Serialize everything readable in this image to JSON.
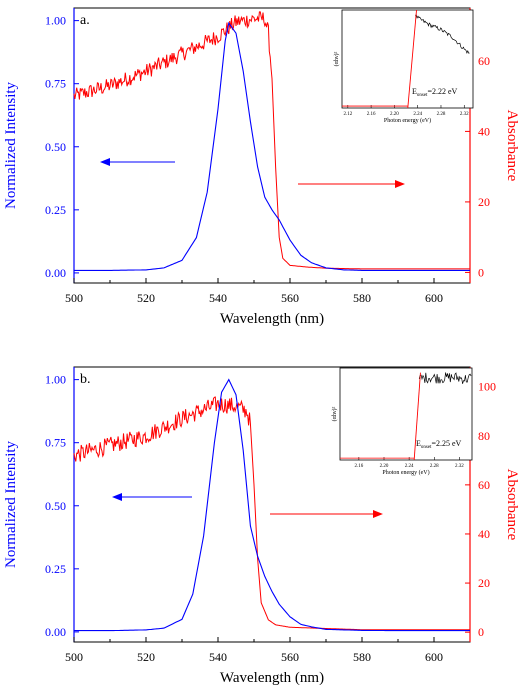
{
  "colors": {
    "emission": "#0000ff",
    "absorbance": "#ff0000",
    "inset_fit": "#ff0000",
    "inset_data": "#000000",
    "axis": "#000000"
  },
  "chart_data": [
    {
      "type": "line",
      "panel_label": "a.",
      "xlabel": "Wavelength (nm)",
      "ylabel_left": "Normalized Intensity",
      "ylabel_right": "Absorbance",
      "xlim": [
        500,
        610
      ],
      "ylim_left": [
        -0.04,
        1.05
      ],
      "ylim_right": [
        -3,
        75
      ],
      "x_ticks": [
        "500",
        "520",
        "540",
        "560",
        "580",
        "600"
      ],
      "y_ticks_left": [
        "0.00",
        "0.25",
        "0.50",
        "0.75",
        "1.00"
      ],
      "y_ticks_right": [
        "0",
        "20",
        "40",
        "60"
      ],
      "arrows": [
        "left",
        "right"
      ],
      "series": [
        {
          "axis": "left",
          "x": [
            500,
            510,
            520,
            525,
            530,
            534,
            537,
            540,
            542,
            543,
            545,
            547,
            549,
            551,
            553,
            555,
            557,
            560,
            563,
            566,
            570,
            575,
            580,
            590,
            600,
            610
          ],
          "values": [
            0.01,
            0.01,
            0.012,
            0.02,
            0.05,
            0.14,
            0.32,
            0.65,
            0.92,
            0.99,
            0.95,
            0.8,
            0.6,
            0.42,
            0.3,
            0.25,
            0.21,
            0.13,
            0.07,
            0.04,
            0.02,
            0.012,
            0.01,
            0.01,
            0.01,
            0.01
          ]
        },
        {
          "axis": "right",
          "x": [
            500,
            510,
            520,
            530,
            540,
            545,
            550,
            553,
            554,
            555,
            556,
            557,
            558,
            560,
            565,
            570,
            580,
            600,
            610
          ],
          "values": [
            50,
            53,
            57,
            62,
            67,
            71,
            72,
            72,
            68,
            55,
            30,
            10,
            4,
            2,
            1.5,
            1.2,
            1,
            1,
            1
          ]
        }
      ],
      "inset": {
        "ylabel": "(αhν)²",
        "xlabel": "Photon energy (eV)",
        "annotation": "E",
        "annotation_sub": "onset",
        "annotation_value": "=2.22 eV",
        "x_ticks": [
          "2.12",
          "2.16",
          "2.20",
          "2.24",
          "2.28",
          "2.32"
        ],
        "xlim": [
          2.11,
          2.335
        ],
        "ylim": [
          0,
          1
        ],
        "fit": {
          "x": [
            2.223,
            2.238
          ],
          "y": [
            0,
            1
          ]
        },
        "data": {
          "x": [
            2.236,
            2.24,
            2.26,
            2.28,
            2.3,
            2.32,
            2.33
          ],
          "y": [
            0.95,
            0.92,
            0.85,
            0.8,
            0.72,
            0.6,
            0.55
          ]
        }
      }
    },
    {
      "type": "line",
      "panel_label": "b.",
      "xlabel": "Wavelength (nm)",
      "ylabel_left": "Normalized Intensity",
      "ylabel_right": "Absorbance",
      "xlim": [
        500,
        610
      ],
      "ylim_left": [
        -0.04,
        1.05
      ],
      "ylim_right": [
        -4,
        108
      ],
      "x_ticks": [
        "500",
        "520",
        "540",
        "560",
        "580",
        "600"
      ],
      "y_ticks_left": [
        "0.00",
        "0.25",
        "0.50",
        "0.75",
        "1.00"
      ],
      "y_ticks_right": [
        "0",
        "20",
        "40",
        "60",
        "80",
        "100"
      ],
      "arrows": [
        "left",
        "right"
      ],
      "series": [
        {
          "axis": "left",
          "x": [
            500,
            510,
            520,
            525,
            530,
            533,
            536,
            539,
            541,
            543,
            545,
            547,
            549,
            551,
            553,
            555,
            557,
            560,
            563,
            566,
            570,
            575,
            580,
            590,
            600,
            610
          ],
          "values": [
            0.005,
            0.005,
            0.008,
            0.015,
            0.05,
            0.15,
            0.38,
            0.75,
            0.95,
            1.0,
            0.94,
            0.72,
            0.42,
            0.3,
            0.22,
            0.16,
            0.11,
            0.06,
            0.03,
            0.02,
            0.01,
            0.008,
            0.006,
            0.005,
            0.005,
            0.005
          ]
        },
        {
          "axis": "right",
          "x": [
            500,
            510,
            520,
            530,
            540,
            545,
            548,
            549,
            550,
            551,
            552,
            554,
            556,
            560,
            570,
            580,
            600,
            610
          ],
          "values": [
            72,
            76,
            80,
            87,
            93,
            92,
            90,
            85,
            60,
            30,
            12,
            5,
            3,
            2,
            1.5,
            1,
            1,
            1
          ]
        }
      ],
      "inset": {
        "ylabel": "(αhν)²",
        "xlabel": "Photon energy (eV)",
        "annotation": "E",
        "annotation_sub": "onset",
        "annotation_value": "=2.25 eV",
        "x_ticks": [
          "2.16",
          "2.20",
          "2.24",
          "2.28",
          "2.32"
        ],
        "xlim": [
          2.13,
          2.34
        ],
        "ylim": [
          0,
          1
        ],
        "fit": {
          "x": [
            2.248,
            2.258
          ],
          "y": [
            0,
            0.95
          ]
        },
        "data": {
          "x": [
            2.256,
            2.27,
            2.29,
            2.31,
            2.33,
            2.34
          ],
          "y": [
            0.88,
            0.9,
            0.89,
            0.9,
            0.88,
            0.9
          ]
        }
      }
    }
  ]
}
